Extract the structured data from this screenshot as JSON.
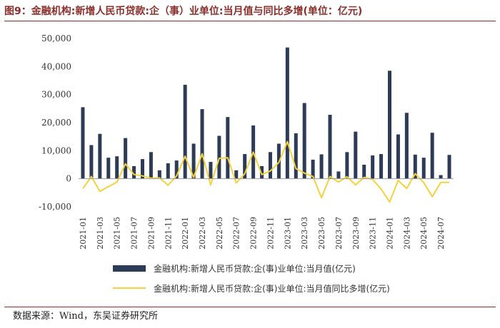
{
  "title": "图9：金融机构:新增人民币贷款:企（事）业单位:当月值与同比多增(单位：亿元)",
  "source": "数据来源：Wind，东吴证券研究所",
  "colors": {
    "bar": "#2e3b56",
    "line": "#f5d23b",
    "title": "#8c2f2a"
  },
  "chart_data": {
    "type": "bar+line",
    "title": "金融机构:新增人民币贷款:企（事）业单位:当月值与同比多增",
    "ylabel": "亿元",
    "ylim": [
      -10000,
      50000
    ],
    "yticks": [
      -10000,
      0,
      10000,
      20000,
      30000,
      40000,
      50000
    ],
    "ytick_labels": [
      "-10,000",
      "0",
      "10,000",
      "20,000",
      "30,000",
      "40,000",
      "50,000"
    ],
    "categories": [
      "2021-01",
      "2021-02",
      "2021-03",
      "2021-04",
      "2021-05",
      "2021-06",
      "2021-07",
      "2021-08",
      "2021-09",
      "2021-10",
      "2021-11",
      "2021-12",
      "2022-01",
      "2022-02",
      "2022-03",
      "2022-04",
      "2022-05",
      "2022-06",
      "2022-07",
      "2022-08",
      "2022-09",
      "2022-10",
      "2022-11",
      "2022-12",
      "2023-01",
      "2023-02",
      "2023-03",
      "2023-04",
      "2023-05",
      "2023-06",
      "2023-07",
      "2023-08",
      "2023-09",
      "2023-10",
      "2023-11",
      "2023-12",
      "2024-01",
      "2024-02",
      "2024-03",
      "2024-04",
      "2024-05",
      "2024-06",
      "2024-07",
      "2024-08"
    ],
    "xtick_labels": [
      "2021-01",
      "2021-03",
      "2021-05",
      "2021-07",
      "2021-09",
      "2021-11",
      "2022-01",
      "2022-03",
      "2022-05",
      "2022-07",
      "2022-09",
      "2022-11",
      "2023-01",
      "2023-03",
      "2023-05",
      "2023-07",
      "2023-09",
      "2023-11",
      "2024-01",
      "2024-03",
      "2024-05",
      "2024-07"
    ],
    "series": [
      {
        "name": "金融机构:新增人民币贷款:企(事)业单位:当月值(亿元)",
        "kind": "bar",
        "values": [
          25500,
          12000,
          16000,
          7500,
          8000,
          14500,
          4500,
          7000,
          9500,
          3000,
          5500,
          6500,
          33500,
          12500,
          24800,
          6000,
          15300,
          22000,
          3000,
          8800,
          19000,
          4500,
          9500,
          12500,
          46800,
          16200,
          27000,
          6800,
          8700,
          22800,
          2600,
          9500,
          16800,
          5000,
          8300,
          8800,
          38500,
          15800,
          23500,
          8600,
          7500,
          16400,
          1300,
          8500
        ]
      },
      {
        "name": "金融机构:新增人民币贷款:企(事)业单位:当月值同比多增(亿元)",
        "kind": "line",
        "values": [
          -3500,
          800,
          -4500,
          -2800,
          -1200,
          5300,
          1500,
          1000,
          200,
          300,
          -2300,
          1000,
          8000,
          500,
          8900,
          -2200,
          7300,
          7500,
          -1500,
          1800,
          9500,
          1500,
          2800,
          5800,
          13200,
          3600,
          2000,
          800,
          -6800,
          800,
          -1200,
          700,
          -2200,
          500,
          -200,
          -3700,
          -8300,
          -600,
          -3500,
          1800,
          -1400,
          -6400,
          -1300,
          -1300
        ]
      }
    ]
  }
}
